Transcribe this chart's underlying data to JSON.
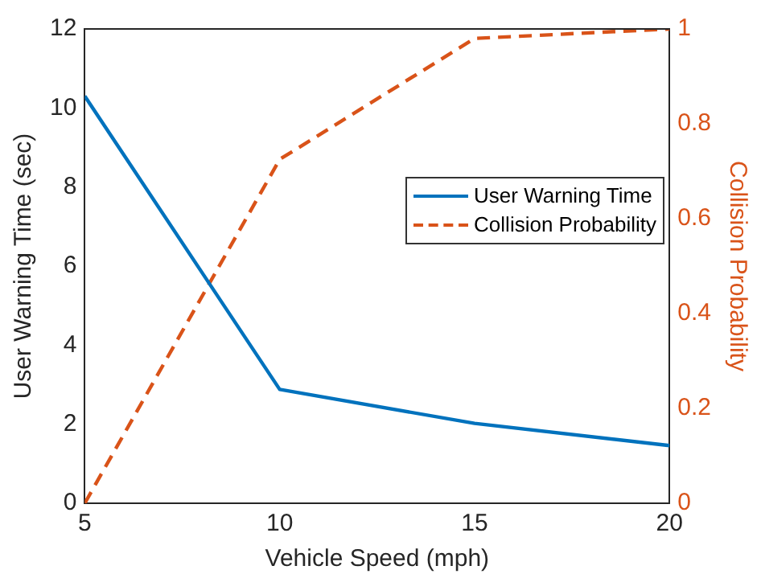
{
  "chart_data": {
    "type": "line",
    "xlabel": "Vehicle Speed (mph)",
    "ylabel": "User Warning Time (sec)",
    "y2label": "Collision Probability",
    "x": [
      5,
      10,
      15,
      20
    ],
    "series": [
      {
        "name": "User Warning Time",
        "color": "#0072bd",
        "values": [
          10.3,
          2.88,
          2.02,
          1.46
        ],
        "line_style": "solid"
      },
      {
        "name": "Collision Probability",
        "color": "#d95319",
        "values": [
          0,
          0.725,
          0.98,
          1.0
        ],
        "axis": "y2",
        "line_style": "dashed"
      }
    ],
    "xlim": [
      5,
      20
    ],
    "xticks": [
      5,
      10,
      15,
      20
    ],
    "ylim": [
      0,
      12
    ],
    "yticks": [
      0,
      2,
      4,
      6,
      8,
      10,
      12
    ],
    "y2lim": [
      0,
      1
    ],
    "y2ticks": [
      0,
      0.2,
      0.4,
      0.6,
      0.8,
      1
    ],
    "grid": false,
    "legend": "right",
    "marker": "none"
  }
}
